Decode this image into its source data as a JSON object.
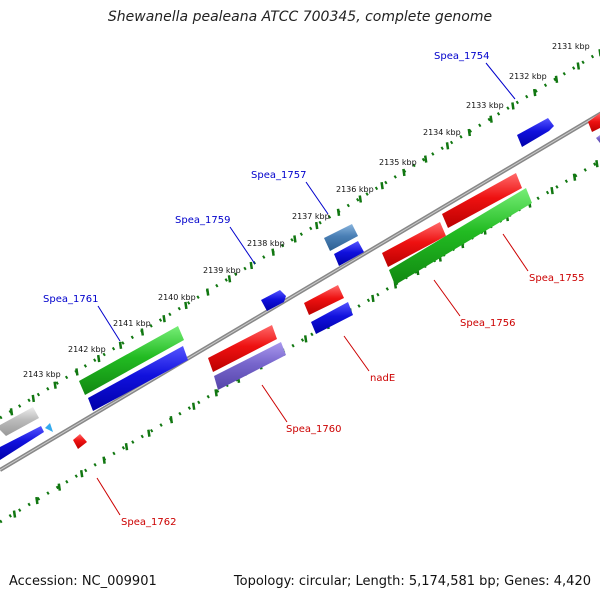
{
  "title": "Shewanella pealeana ATCC 700345, complete genome",
  "footer": {
    "accession": "Accession: NC_009901",
    "summary": "Topology: circular; Length: 5,174,581 bp; Genes: 4,420"
  },
  "ticks": [
    {
      "label": "2131 kbp"
    },
    {
      "label": "2132 kbp"
    },
    {
      "label": "2133 kbp"
    },
    {
      "label": "2134 kbp"
    },
    {
      "label": "2135 kbp"
    },
    {
      "label": "2136 kbp"
    },
    {
      "label": "2137 kbp"
    },
    {
      "label": "2138 kbp"
    },
    {
      "label": "2139 kbp"
    },
    {
      "label": "2140 kbp"
    },
    {
      "label": "2141 kbp"
    },
    {
      "label": "2142 kbp"
    },
    {
      "label": "2143 kbp"
    }
  ],
  "gene_labels": [
    {
      "text": "Spea_1754",
      "color": "#0000cc"
    },
    {
      "text": "Spea_1757",
      "color": "#0000cc"
    },
    {
      "text": "Spea_1759",
      "color": "#0000cc"
    },
    {
      "text": "Spea_1761",
      "color": "#0000cc"
    },
    {
      "text": "Spea_1755",
      "color": "#cc0000"
    },
    {
      "text": "Spea_1756",
      "color": "#cc0000"
    },
    {
      "text": "nadE",
      "color": "#cc0000"
    },
    {
      "text": "Spea_1760",
      "color": "#cc0000"
    },
    {
      "text": "Spea_1762",
      "color": "#cc0000"
    }
  ],
  "colors": {
    "backbone": "#888888",
    "tick_dots": "#117711",
    "red_gene": "#ee1111",
    "blue_gene": "#1111dd",
    "green_gene": "#22bb22",
    "purple_gene": "#7766cc",
    "steelblue_gene": "#4a7fb5",
    "gray_gene": "#bbbbbb",
    "cyan_gene": "#33aaee"
  }
}
